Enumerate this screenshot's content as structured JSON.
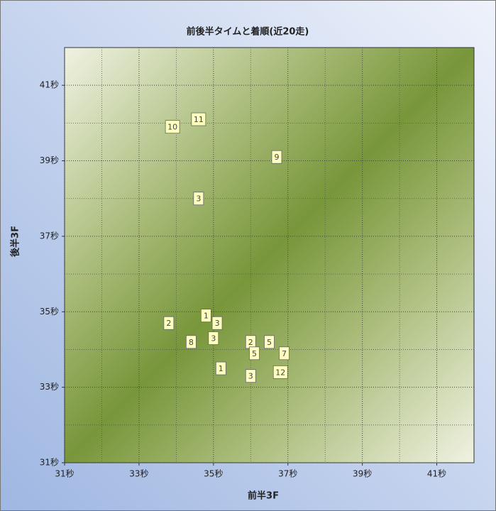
{
  "chart_data": {
    "type": "scatter",
    "title": "前後半タイムと着順(近20走)",
    "xlabel": "前半3F",
    "ylabel": "後半3F",
    "x": [
      33.9,
      34.6,
      36.7,
      34.6,
      34.8,
      33.8,
      35.1,
      35.0,
      34.4,
      36.0,
      36.5,
      36.1,
      36.9,
      35.2,
      36.8,
      36.0
    ],
    "values": [
      39.9,
      40.1,
      39.1,
      38.0,
      34.9,
      34.7,
      34.7,
      34.3,
      34.2,
      34.2,
      34.2,
      33.9,
      33.9,
      33.5,
      33.4,
      33.3
    ],
    "point_labels": [
      "10",
      "11",
      "9",
      "3",
      "1",
      "2",
      "3",
      "3",
      "8",
      "2",
      "5",
      "5",
      "7",
      "1",
      "12",
      "3"
    ],
    "marker_color": "#ffffc0",
    "xlim": [
      31,
      42
    ],
    "ylim": [
      31,
      42
    ],
    "xticks": [
      {
        "value": 31,
        "label": "31秒"
      },
      {
        "value": 33,
        "label": "33秒"
      },
      {
        "value": 35,
        "label": "35秒"
      },
      {
        "value": 37,
        "label": "37秒"
      },
      {
        "value": 39,
        "label": "39秒"
      },
      {
        "value": 41,
        "label": "41秒"
      }
    ],
    "yticks": [
      {
        "value": 31,
        "label": "31秒"
      },
      {
        "value": 33,
        "label": "33秒"
      },
      {
        "value": 35,
        "label": "35秒"
      },
      {
        "value": 37,
        "label": "37秒"
      },
      {
        "value": 39,
        "label": "39秒"
      },
      {
        "value": 41,
        "label": "41秒"
      }
    ],
    "minor_ticks": [
      32,
      34,
      36,
      38,
      40
    ],
    "grid": true
  }
}
